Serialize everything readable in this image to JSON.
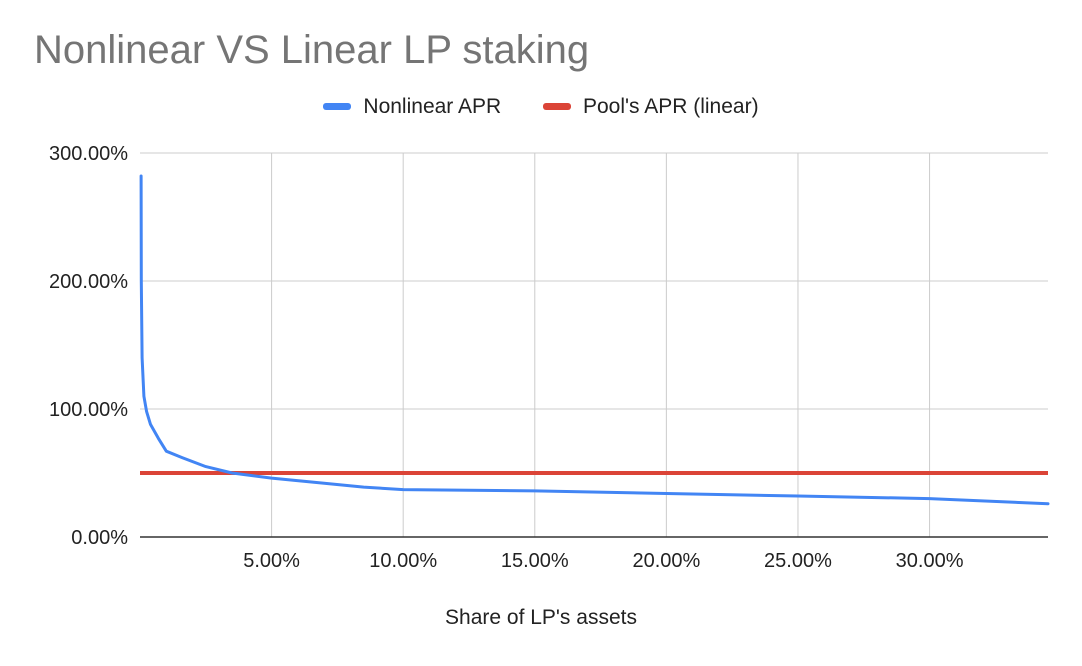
{
  "chart_data": {
    "type": "line",
    "title": "Nonlinear VS Linear LP staking",
    "xlabel": "Share of LP's assets",
    "ylabel": "",
    "xlim": [
      0,
      34.5
    ],
    "ylim": [
      0,
      300
    ],
    "x_ticks": [
      5,
      10,
      15,
      20,
      25,
      30
    ],
    "x_tick_labels": [
      "5.00%",
      "10.00%",
      "15.00%",
      "20.00%",
      "25.00%",
      "30.00%"
    ],
    "y_ticks": [
      0,
      100,
      200,
      300
    ],
    "y_tick_labels": [
      "0.00%",
      "100.00%",
      "200.00%",
      "300.00%"
    ],
    "grid": true,
    "legend_position": "top",
    "series": [
      {
        "name": "Nonlinear APR",
        "color": "#4285f4",
        "x": [
          0.04,
          0.05,
          0.08,
          0.15,
          0.25,
          0.4,
          0.7,
          1.0,
          1.6,
          2.5,
          3.5,
          5.0,
          7.0,
          8.5,
          10,
          15,
          20,
          25,
          30,
          34.5
        ],
        "y": [
          282,
          200,
          140,
          110,
          98,
          88,
          77,
          67,
          62,
          55,
          50,
          46,
          42,
          39,
          37,
          36,
          34,
          32,
          30,
          26
        ]
      },
      {
        "name": "Pool's APR (linear)",
        "color": "#db4437",
        "x": [
          0,
          34.5
        ],
        "y": [
          50,
          50
        ]
      }
    ]
  }
}
